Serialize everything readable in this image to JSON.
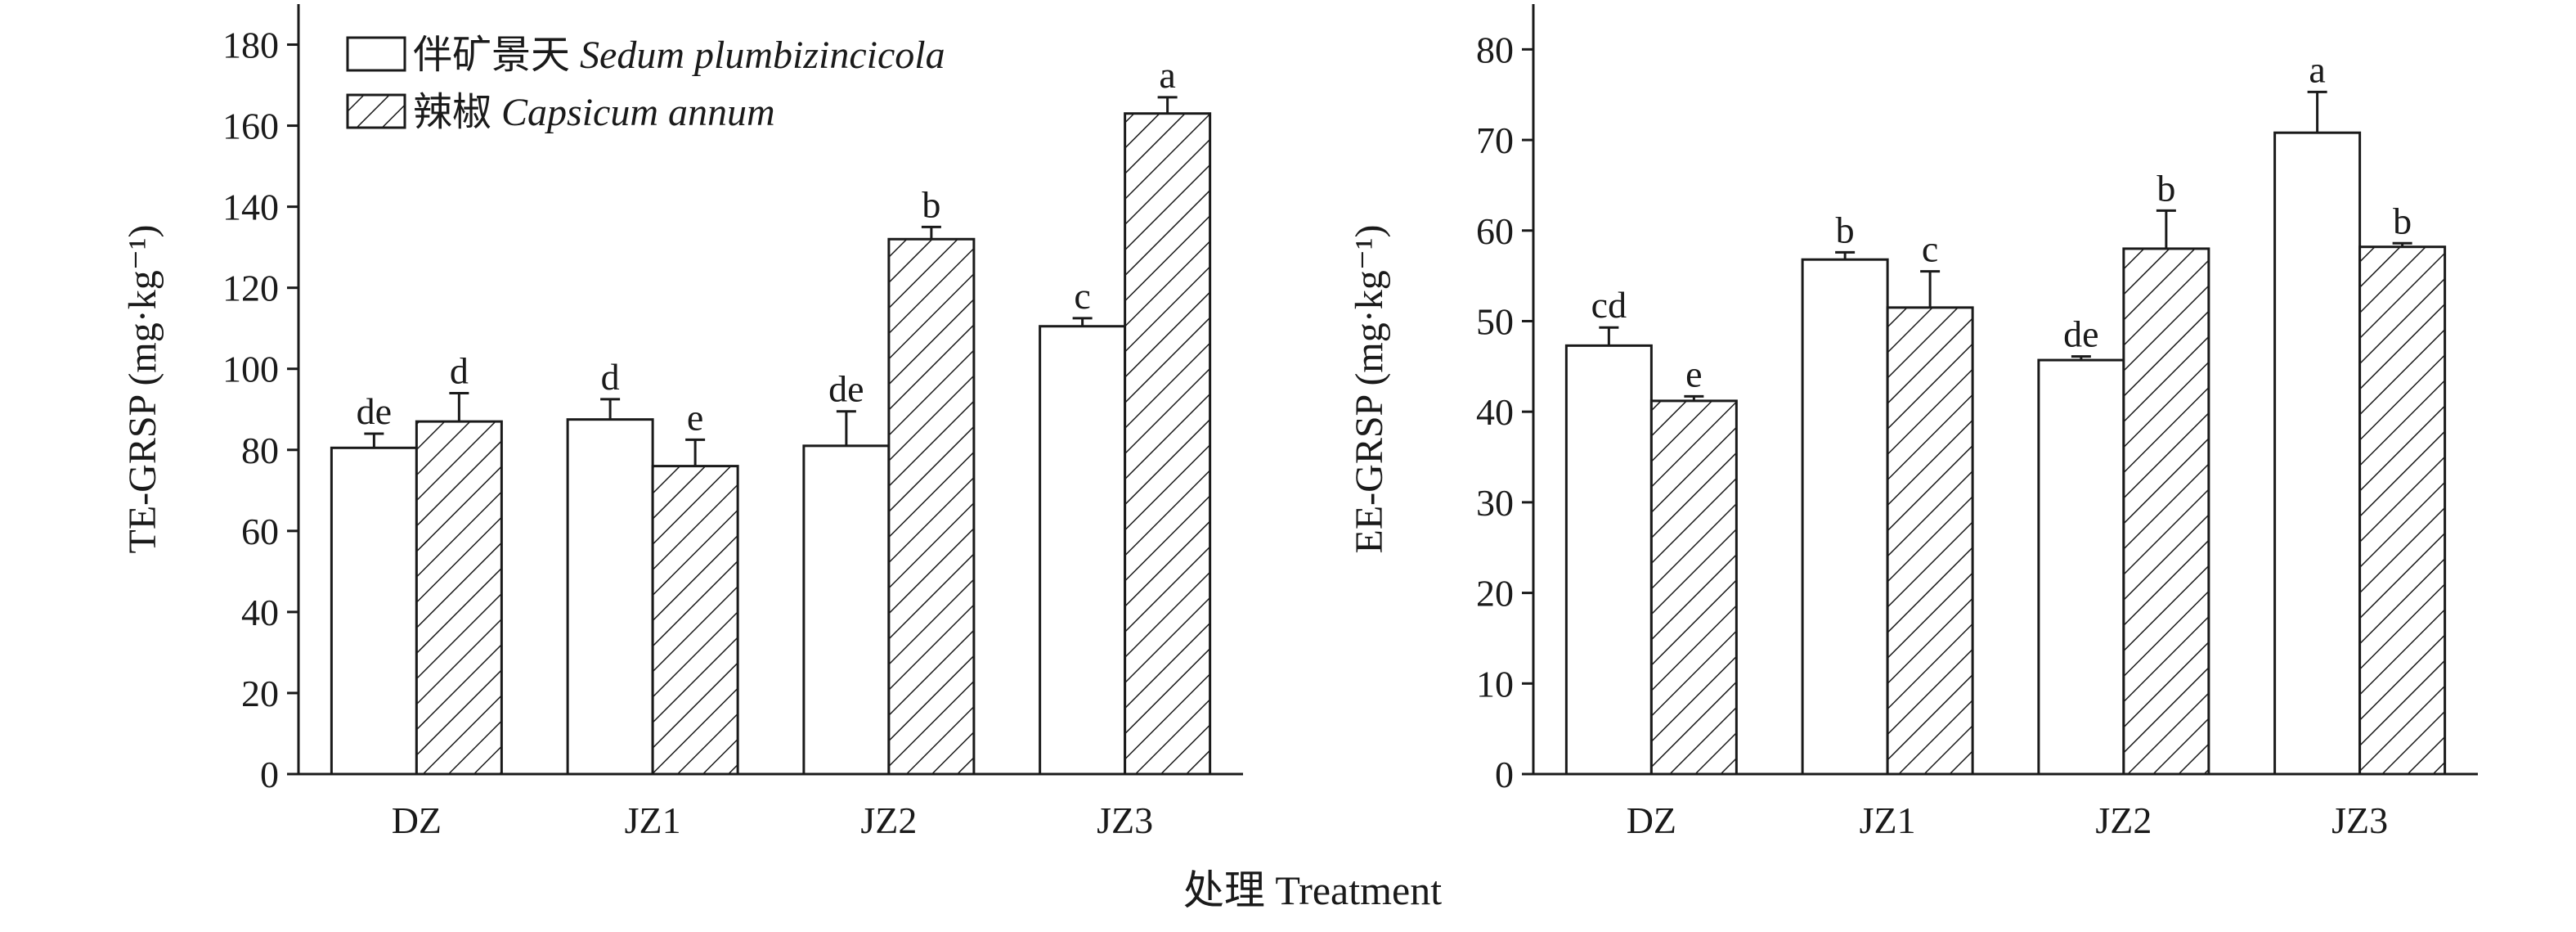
{
  "chart_data": [
    {
      "type": "bar",
      "categories": [
        "DZ",
        "JZ1",
        "JZ2",
        "JZ3"
      ],
      "ylabel": "TE-GRSP (mg·kg⁻¹)",
      "ylim": [
        0,
        190
      ],
      "yticks": [
        0,
        20,
        40,
        60,
        80,
        100,
        120,
        140,
        160,
        180
      ],
      "grid": false,
      "legend": {
        "placement": "top-left",
        "items": [
          {
            "cn": "伴矿景天 ",
            "latin": "Sedum plumbizincicola",
            "fill": "white"
          },
          {
            "cn": "辣椒 ",
            "latin": "Capsicum annum",
            "fill": "hatched"
          }
        ]
      },
      "series": [
        {
          "name": "伴矿景天 Sedum plumbizincicola",
          "values": [
            80.5,
            87.5,
            81,
            110.5
          ],
          "errors": [
            3.5,
            5,
            8.5,
            2
          ],
          "letters": [
            "de",
            "d",
            "de",
            "c"
          ]
        },
        {
          "name": "辣椒 Capsicum annum",
          "values": [
            87,
            76,
            132,
            163
          ],
          "errors": [
            7,
            6.5,
            3,
            4
          ],
          "letters": [
            "d",
            "e",
            "b",
            "a"
          ]
        }
      ]
    },
    {
      "type": "bar",
      "categories": [
        "DZ",
        "JZ1",
        "JZ2",
        "JZ3"
      ],
      "ylabel": "EE-GRSP (mg·kg⁻¹)",
      "ylim": [
        0,
        85
      ],
      "yticks": [
        0,
        10,
        20,
        30,
        40,
        50,
        60,
        70,
        80
      ],
      "grid": false,
      "series": [
        {
          "name": "伴矿景天 Sedum plumbizincicola",
          "values": [
            47.3,
            56.8,
            45.7,
            70.8
          ],
          "errors": [
            2,
            0.8,
            0.4,
            4.5
          ],
          "letters": [
            "cd",
            "b",
            "de",
            "a"
          ]
        },
        {
          "name": "辣椒 Capsicum annum",
          "values": [
            41.2,
            51.5,
            58,
            58.2
          ],
          "errors": [
            0.5,
            4,
            4.2,
            0.4
          ],
          "letters": [
            "e",
            "c",
            "b",
            "b"
          ]
        }
      ]
    }
  ],
  "x_title": "处理 Treatment"
}
